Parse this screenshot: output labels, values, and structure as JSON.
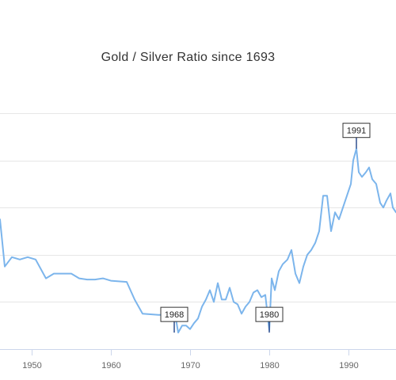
{
  "chart_data": {
    "type": "line",
    "title": "Gold / Silver Ratio since 1693",
    "xlabel": "",
    "ylabel": "",
    "xlim": [
      1946,
      1996
    ],
    "ylim": [
      10,
      110
    ],
    "y_grid_values": [
      10,
      30,
      50,
      70,
      90,
      110
    ],
    "x_ticks": [
      1950,
      1960,
      1970,
      1980,
      1990
    ],
    "x_tick_labels": [
      "1950",
      "1960",
      "1970",
      "1980",
      "1990"
    ],
    "grid": true,
    "legend": "none",
    "series": [
      {
        "color": "#7cb5ec",
        "x": [
          1946,
          1946.6,
          1947.5,
          1948.5,
          1949.5,
          1950.5,
          1951.8,
          1952.8,
          1955,
          1956,
          1957,
          1958,
          1959,
          1960,
          1962,
          1963,
          1964,
          1966,
          1967,
          1968,
          1968.2,
          1968.5,
          1969,
          1969.5,
          1970,
          1970.5,
          1971,
          1971.5,
          1972,
          1972.5,
          1973,
          1973.5,
          1974,
          1974.5,
          1975,
          1975.5,
          1976,
          1976.5,
          1977,
          1977.5,
          1978,
          1978.5,
          1979,
          1979.5,
          1980,
          1980.3,
          1980.7,
          1981.2,
          1981.7,
          1982.3,
          1982.8,
          1983.3,
          1983.8,
          1984.3,
          1984.8,
          1985.3,
          1985.8,
          1986.3,
          1986.8,
          1987.3,
          1987.8,
          1988.3,
          1988.8,
          1989.3,
          1989.8,
          1990.3,
          1990.6,
          1991,
          1991.3,
          1991.7,
          1992.2,
          1992.6,
          1993,
          1993.5,
          1994,
          1994.4,
          1994.8,
          1995.3,
          1995.6,
          1996
        ],
        "y": [
          65,
          45,
          49,
          48,
          49,
          48,
          40,
          42,
          42,
          40,
          39.5,
          39.5,
          40,
          39,
          38.5,
          31,
          25,
          24.5,
          24.5,
          24.5,
          23,
          17,
          20,
          20,
          18.5,
          21,
          23,
          28,
          31,
          35,
          30,
          38,
          31,
          31,
          36,
          30,
          29,
          25,
          28,
          30,
          34,
          35,
          32,
          33,
          18,
          40,
          35,
          43,
          46,
          48,
          52,
          42,
          38,
          45,
          50,
          52,
          55,
          60,
          75,
          75,
          60,
          68,
          65,
          70,
          75,
          80,
          90,
          95,
          85,
          83,
          85,
          87,
          82,
          80,
          72,
          70,
          73,
          76,
          70,
          68
        ]
      }
    ],
    "annotations": [
      {
        "label": "1968",
        "x": 1968,
        "y": 17
      },
      {
        "label": "1980",
        "x": 1980,
        "y": 17
      },
      {
        "label": "1991",
        "x": 1991,
        "y": 95
      }
    ]
  }
}
